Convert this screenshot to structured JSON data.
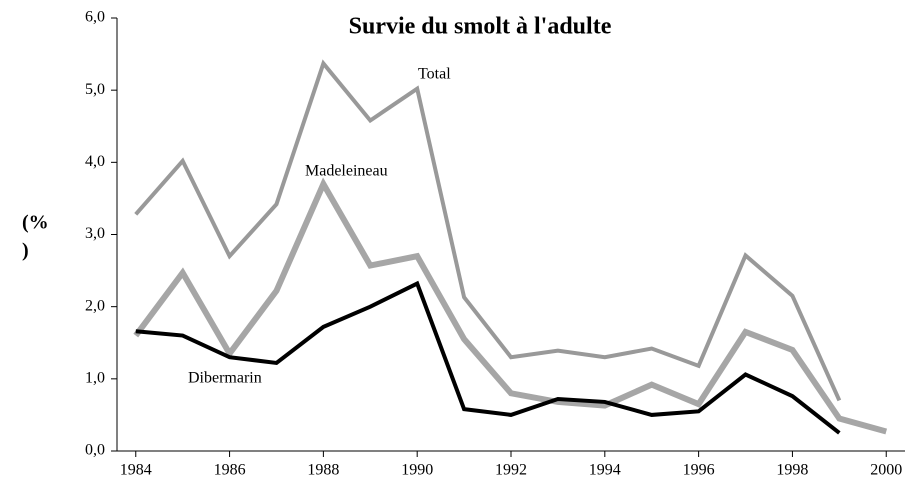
{
  "chart_data": {
    "type": "line",
    "title": "Survie du smolt à l'adulte",
    "y_label": [
      "(%",
      ")"
    ],
    "x": [
      1984,
      1985,
      1986,
      1987,
      1988,
      1989,
      1990,
      1991,
      1992,
      1993,
      1994,
      1995,
      1996,
      1997,
      1998,
      1999,
      2000
    ],
    "xlim": [
      1983.6,
      2000.4
    ],
    "xticks": [
      1984,
      1986,
      1988,
      1990,
      1992,
      1994,
      1996,
      1998,
      2000
    ],
    "ylim": [
      0,
      6
    ],
    "yticks": [
      {
        "value": 0,
        "label": "0,0"
      },
      {
        "value": 1,
        "label": "1,0"
      },
      {
        "value": 2,
        "label": "2,0"
      },
      {
        "value": 3,
        "label": "3,0"
      },
      {
        "value": 4,
        "label": "4,0"
      },
      {
        "value": 5,
        "label": "5,0"
      },
      {
        "value": 6,
        "label": "6,0"
      }
    ],
    "grid": false,
    "series": [
      {
        "name": "Total",
        "color": "#999999",
        "values": [
          3.28,
          4.02,
          2.7,
          3.42,
          5.37,
          4.58,
          5.02,
          2.13,
          1.3,
          1.39,
          1.3,
          1.42,
          1.18,
          2.71,
          2.15,
          0.7,
          null
        ]
      },
      {
        "name": "Madeleineau",
        "color": "#a6a6a6",
        "values": [
          1.6,
          2.47,
          1.35,
          2.22,
          3.7,
          2.57,
          2.7,
          1.55,
          0.8,
          0.68,
          0.63,
          0.92,
          0.65,
          1.65,
          1.4,
          0.45,
          0.27
        ]
      },
      {
        "name": "Dibermarin",
        "color": "#000000",
        "values": [
          1.66,
          1.6,
          1.3,
          1.22,
          1.72,
          2.0,
          2.32,
          0.58,
          0.5,
          0.72,
          0.68,
          0.5,
          0.55,
          1.06,
          0.76,
          0.25,
          null
        ]
      }
    ]
  }
}
